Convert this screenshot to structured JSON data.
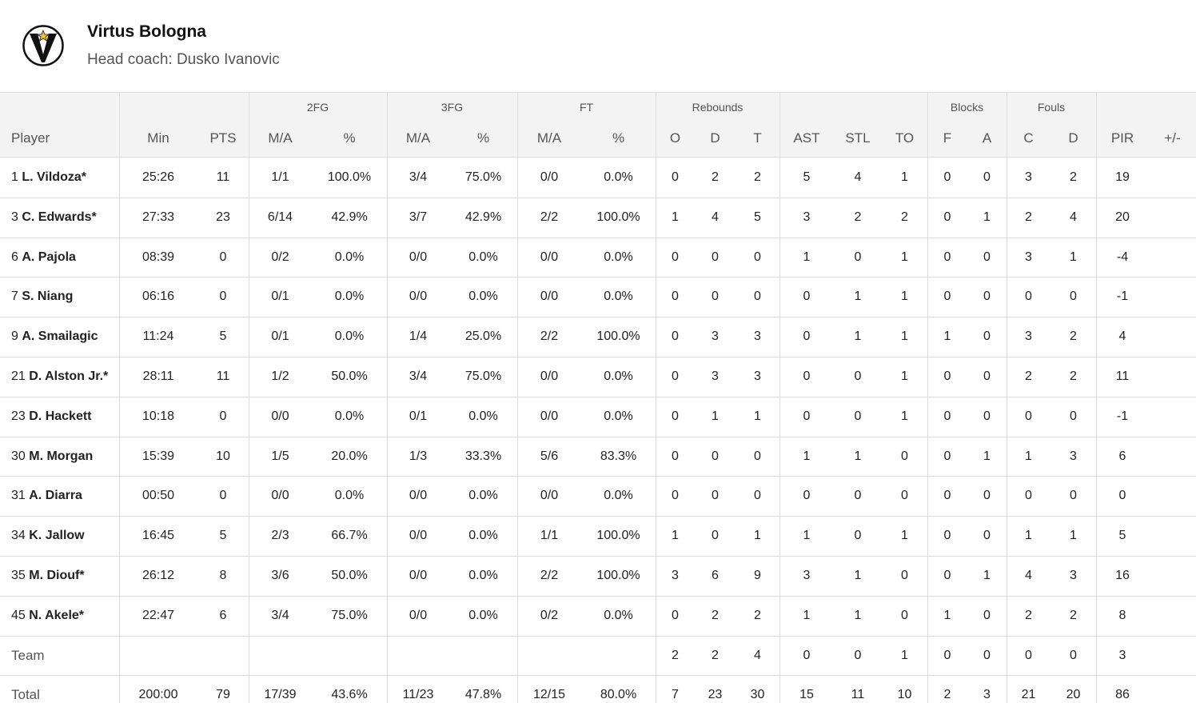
{
  "header": {
    "title": "Virtus Bologna",
    "subtitle": "Head coach: Dusko Ivanovic"
  },
  "table": {
    "groups": [
      "2FG",
      "3FG",
      "FT",
      "Rebounds",
      "Blocks",
      "Fouls"
    ],
    "columns": [
      "Player",
      "Min",
      "PTS",
      "M/A",
      "%",
      "M/A",
      "%",
      "M/A",
      "%",
      "O",
      "D",
      "T",
      "AST",
      "STL",
      "TO",
      "F",
      "A",
      "C",
      "D",
      "PIR",
      "+/-"
    ],
    "rows": [
      {
        "number": 1,
        "name": "L. Vildoza*",
        "cells": [
          "25:26",
          11,
          "1/1",
          "100.0%",
          "3/4",
          "75.0%",
          "0/0",
          "0.0%",
          0,
          2,
          2,
          5,
          4,
          1,
          0,
          0,
          3,
          2,
          19
        ]
      },
      {
        "number": 3,
        "name": "C. Edwards*",
        "cells": [
          "27:33",
          23,
          "6/14",
          "42.9%",
          "3/7",
          "42.9%",
          "2/2",
          "100.0%",
          1,
          4,
          5,
          3,
          2,
          2,
          0,
          1,
          2,
          4,
          20
        ]
      },
      {
        "number": 6,
        "name": "A. Pajola",
        "cells": [
          "08:39",
          0,
          "0/2",
          "0.0%",
          "0/0",
          "0.0%",
          "0/0",
          "0.0%",
          0,
          0,
          0,
          1,
          0,
          1,
          0,
          0,
          3,
          1,
          -4
        ]
      },
      {
        "number": 7,
        "name": "S. Niang",
        "cells": [
          "06:16",
          0,
          "0/1",
          "0.0%",
          "0/0",
          "0.0%",
          "0/0",
          "0.0%",
          0,
          0,
          0,
          0,
          1,
          1,
          0,
          0,
          0,
          0,
          -1
        ]
      },
      {
        "number": 9,
        "name": "A. Smailagic",
        "cells": [
          "11:24",
          5,
          "0/1",
          "0.0%",
          "1/4",
          "25.0%",
          "2/2",
          "100.0%",
          0,
          3,
          3,
          0,
          1,
          1,
          1,
          0,
          3,
          2,
          4
        ]
      },
      {
        "number": 21,
        "name": "D. Alston Jr.*",
        "cells": [
          "28:11",
          11,
          "1/2",
          "50.0%",
          "3/4",
          "75.0%",
          "0/0",
          "0.0%",
          0,
          3,
          3,
          0,
          0,
          1,
          0,
          0,
          2,
          2,
          11
        ]
      },
      {
        "number": 23,
        "name": "D. Hackett",
        "cells": [
          "10:18",
          0,
          "0/0",
          "0.0%",
          "0/1",
          "0.0%",
          "0/0",
          "0.0%",
          0,
          1,
          1,
          0,
          0,
          1,
          0,
          0,
          0,
          0,
          -1
        ]
      },
      {
        "number": 30,
        "name": "M. Morgan",
        "cells": [
          "15:39",
          10,
          "1/5",
          "20.0%",
          "1/3",
          "33.3%",
          "5/6",
          "83.3%",
          0,
          0,
          0,
          1,
          1,
          0,
          0,
          1,
          1,
          3,
          6
        ]
      },
      {
        "number": 31,
        "name": "A. Diarra",
        "cells": [
          "00:50",
          0,
          "0/0",
          "0.0%",
          "0/0",
          "0.0%",
          "0/0",
          "0.0%",
          0,
          0,
          0,
          0,
          0,
          0,
          0,
          0,
          0,
          0,
          0
        ]
      },
      {
        "number": 34,
        "name": "K. Jallow",
        "cells": [
          "16:45",
          5,
          "2/3",
          "66.7%",
          "0/0",
          "0.0%",
          "1/1",
          "100.0%",
          1,
          0,
          1,
          1,
          0,
          1,
          0,
          0,
          1,
          1,
          5
        ]
      },
      {
        "number": 35,
        "name": "M. Diouf*",
        "cells": [
          "26:12",
          8,
          "3/6",
          "50.0%",
          "0/0",
          "0.0%",
          "2/2",
          "100.0%",
          3,
          6,
          9,
          3,
          1,
          0,
          0,
          1,
          4,
          3,
          16
        ]
      },
      {
        "number": 45,
        "name": "N. Akele*",
        "cells": [
          "22:47",
          6,
          "3/4",
          "75.0%",
          "0/0",
          "0.0%",
          "0/2",
          "0.0%",
          0,
          2,
          2,
          1,
          1,
          0,
          1,
          0,
          2,
          2,
          8
        ]
      }
    ],
    "team": {
      "label": "Team",
      "cells": [
        null,
        null,
        null,
        null,
        null,
        null,
        null,
        null,
        2,
        2,
        4,
        0,
        0,
        1,
        0,
        0,
        0,
        0,
        3
      ]
    },
    "total": {
      "label": "Total",
      "cells": [
        "200:00",
        79,
        "17/39",
        "43.6%",
        "11/23",
        "47.8%",
        "12/15",
        "80.0%",
        7,
        23,
        30,
        15,
        11,
        10,
        2,
        3,
        21,
        20,
        86
      ]
    }
  }
}
